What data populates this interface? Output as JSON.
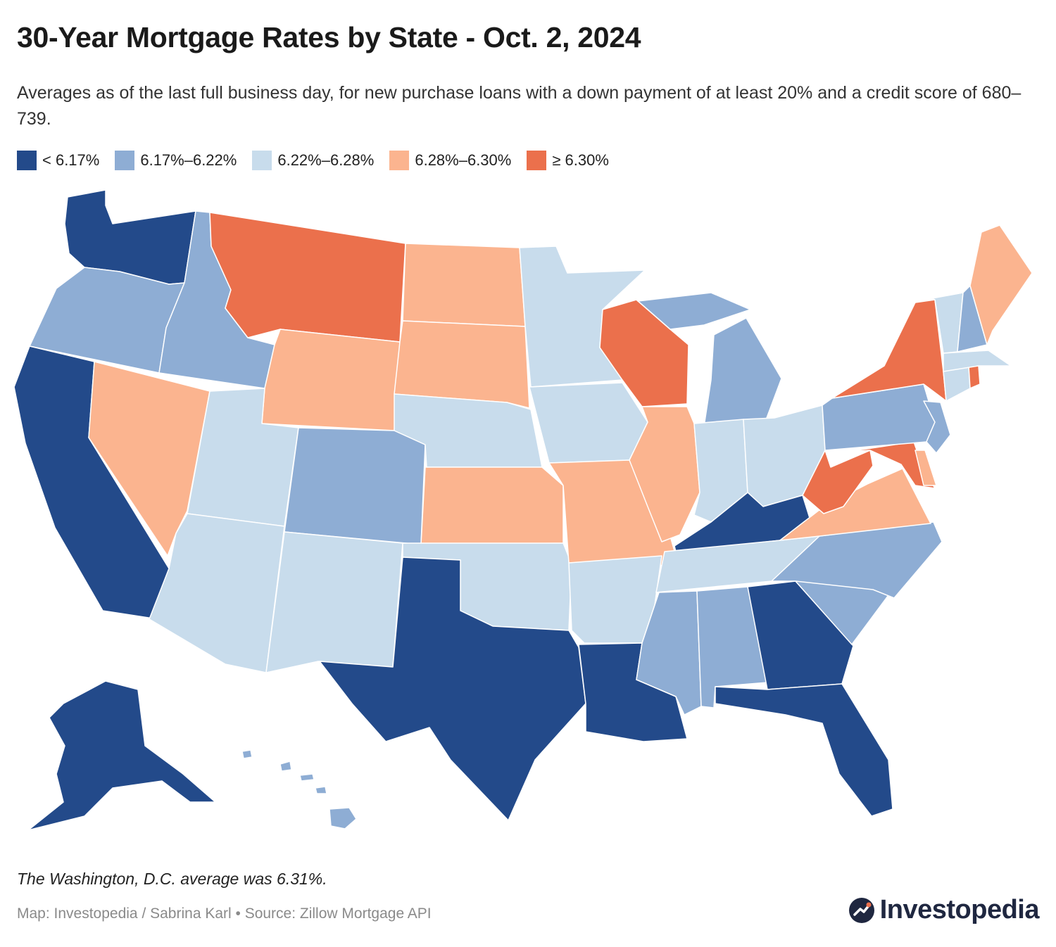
{
  "header": {
    "title": "30-Year Mortgage Rates by State - Oct. 2, 2024",
    "subtitle": "Averages as of the last full business day, for new purchase loans with a down payment of at least 20% and a credit score of 680–739."
  },
  "legend": [
    {
      "label": "< 6.17%",
      "color": "#234a8a"
    },
    {
      "label": "6.17%–6.22%",
      "color": "#8eadd4"
    },
    {
      "label": "6.22%–6.28%",
      "color": "#c8dcec"
    },
    {
      "label": "6.28%–6.30%",
      "color": "#fbb48f"
    },
    {
      "label": "≥ 6.30%",
      "color": "#eb704c"
    }
  ],
  "map": {
    "state_rate_bins": {
      "WA": 0,
      "OR": 1,
      "CA": 0,
      "ID": 1,
      "NV": 3,
      "MT": 4,
      "WY": 3,
      "UT": 2,
      "AZ": 2,
      "CO": 1,
      "NM": 2,
      "ND": 3,
      "SD": 3,
      "NE": 2,
      "KS": 3,
      "OK": 2,
      "TX": 0,
      "MN": 2,
      "IA": 2,
      "MO": 3,
      "AR": 2,
      "LA": 0,
      "WI": 4,
      "IL": 3,
      "MI": 1,
      "IN": 2,
      "OH": 2,
      "KY": 0,
      "TN": 2,
      "MS": 1,
      "AL": 1,
      "GA": 0,
      "FL": 0,
      "SC": 1,
      "NC": 1,
      "VA": 3,
      "WV": 4,
      "MD": 4,
      "DE": 3,
      "PA": 1,
      "NJ": 1,
      "NY": 4,
      "CT": 2,
      "RI": 4,
      "MA": 2,
      "VT": 2,
      "NH": 1,
      "ME": 3,
      "AK": 0,
      "HI": 1
    }
  },
  "footnote": "The Washington, D.C. average was 6.31%.",
  "credit": "Map: Investopedia / Sabrina Karl • Source: Zillow Mortgage API",
  "brand": {
    "name": "Investopedia"
  }
}
